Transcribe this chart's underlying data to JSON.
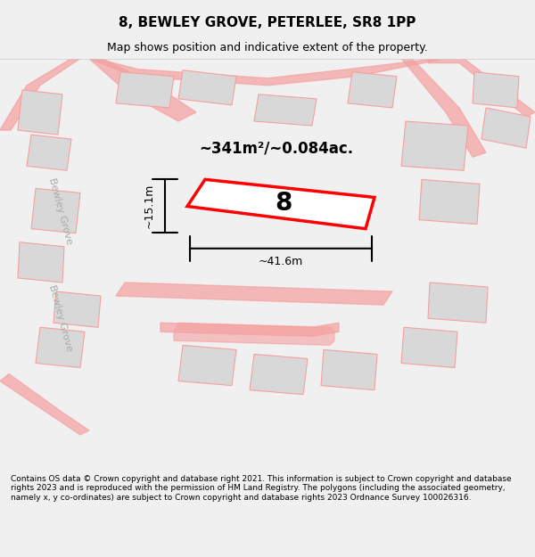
{
  "title": "8, BEWLEY GROVE, PETERLEE, SR8 1PP",
  "subtitle": "Map shows position and indicative extent of the property.",
  "area_label": "~341m²/~0.084ac.",
  "width_label": "~41.6m",
  "height_label": "~15.1m",
  "plot_number": "8",
  "footer": "Contains OS data © Crown copyright and database right 2021. This information is subject to Crown copyright and database rights 2023 and is reproduced with the permission of HM Land Registry. The polygons (including the associated geometry, namely x, y co-ordinates) are subject to Crown copyright and database rights 2023 Ordnance Survey 100026316.",
  "bg_color": "#f5f5f5",
  "map_bg": "#ffffff",
  "road_color": "#f5a0a0",
  "building_color": "#d8d8d8",
  "highlight_color": "#ff0000",
  "text_color": "#000000",
  "dim_color": "#333333"
}
